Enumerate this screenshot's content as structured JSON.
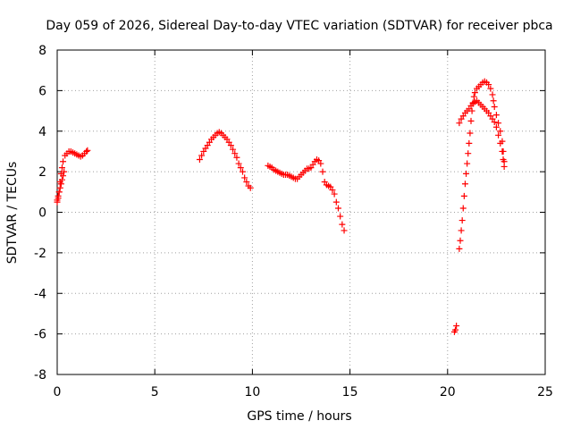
{
  "chart_data": {
    "type": "scatter",
    "title": "Day 059 of 2026, Sidereal Day-to-day VTEC variation (SDTVAR) for receiver pbca",
    "xlabel": "GPS time / hours",
    "ylabel": "SDTVAR / TECUs",
    "xlim": [
      0,
      25
    ],
    "ylim": [
      -8,
      8
    ],
    "xticks": [
      0,
      5,
      10,
      15,
      20,
      25
    ],
    "yticks": [
      -8,
      -6,
      -4,
      -2,
      0,
      2,
      4,
      6,
      8
    ],
    "xtick_labels": [
      "0",
      "5",
      "10",
      "15",
      "20",
      "25"
    ],
    "ytick_labels": [
      "-8",
      "-6",
      "-4",
      "-2",
      "0",
      "2",
      "4",
      "6",
      "8"
    ],
    "grid": true,
    "marker": "plus",
    "color": "#ff0000",
    "segments": [
      [
        [
          0.0,
          0.5
        ],
        [
          0.05,
          0.7
        ],
        [
          0.1,
          1.0
        ],
        [
          0.15,
          1.5
        ],
        [
          0.2,
          1.9
        ],
        [
          0.25,
          2.2
        ],
        [
          0.3,
          2.5
        ],
        [
          0.4,
          2.8
        ],
        [
          0.5,
          2.9
        ],
        [
          0.6,
          3.0
        ],
        [
          0.7,
          3.0
        ],
        [
          0.8,
          2.95
        ],
        [
          0.9,
          2.9
        ],
        [
          1.0,
          2.85
        ],
        [
          1.1,
          2.8
        ],
        [
          1.2,
          2.75
        ],
        [
          1.3,
          2.8
        ],
        [
          1.4,
          2.9
        ],
        [
          1.5,
          3.0
        ],
        [
          1.55,
          3.05
        ]
      ],
      [
        [
          0.0,
          0.6
        ],
        [
          0.05,
          0.8
        ],
        [
          0.1,
          1.0
        ],
        [
          0.15,
          1.2
        ],
        [
          0.2,
          1.4
        ],
        [
          0.25,
          1.6
        ],
        [
          0.3,
          1.8
        ],
        [
          0.35,
          2.0
        ]
      ],
      [
        [
          7.3,
          2.6
        ],
        [
          7.4,
          2.8
        ],
        [
          7.5,
          3.0
        ],
        [
          7.6,
          3.15
        ],
        [
          7.7,
          3.3
        ],
        [
          7.8,
          3.45
        ],
        [
          7.9,
          3.6
        ],
        [
          8.0,
          3.7
        ],
        [
          8.1,
          3.8
        ],
        [
          8.2,
          3.9
        ],
        [
          8.3,
          3.95
        ],
        [
          8.4,
          3.9
        ],
        [
          8.5,
          3.8
        ],
        [
          8.6,
          3.7
        ],
        [
          8.7,
          3.6
        ],
        [
          8.8,
          3.45
        ],
        [
          8.9,
          3.3
        ],
        [
          9.0,
          3.1
        ],
        [
          9.1,
          2.9
        ],
        [
          9.2,
          2.7
        ],
        [
          9.3,
          2.4
        ],
        [
          9.4,
          2.2
        ],
        [
          9.5,
          2.0
        ],
        [
          9.6,
          1.7
        ],
        [
          9.7,
          1.5
        ],
        [
          9.8,
          1.3
        ],
        [
          9.9,
          1.2
        ]
      ],
      [
        [
          10.8,
          2.3
        ],
        [
          10.9,
          2.25
        ],
        [
          11.0,
          2.2
        ],
        [
          11.1,
          2.1
        ],
        [
          11.2,
          2.05
        ],
        [
          11.3,
          2.0
        ],
        [
          11.4,
          1.95
        ],
        [
          11.5,
          1.9
        ],
        [
          11.6,
          1.85
        ],
        [
          11.7,
          1.85
        ],
        [
          11.8,
          1.85
        ],
        [
          11.9,
          1.8
        ],
        [
          12.0,
          1.75
        ],
        [
          12.1,
          1.7
        ],
        [
          12.2,
          1.65
        ],
        [
          12.3,
          1.65
        ],
        [
          12.4,
          1.75
        ],
        [
          12.5,
          1.85
        ],
        [
          12.6,
          1.95
        ],
        [
          12.7,
          2.05
        ],
        [
          12.8,
          2.15
        ],
        [
          12.9,
          2.15
        ],
        [
          13.0,
          2.2
        ],
        [
          13.1,
          2.35
        ],
        [
          13.2,
          2.5
        ],
        [
          13.3,
          2.6
        ],
        [
          13.4,
          2.55
        ],
        [
          13.5,
          2.4
        ],
        [
          13.6,
          2.0
        ],
        [
          13.7,
          1.5
        ],
        [
          13.8,
          1.35
        ],
        [
          13.9,
          1.3
        ],
        [
          14.0,
          1.25
        ],
        [
          14.1,
          1.1
        ],
        [
          14.2,
          0.9
        ],
        [
          14.3,
          0.5
        ],
        [
          14.4,
          0.2
        ],
        [
          14.5,
          -0.2
        ],
        [
          14.6,
          -0.6
        ],
        [
          14.7,
          -0.9
        ]
      ],
      [
        [
          20.35,
          -5.9
        ],
        [
          20.4,
          -5.8
        ],
        [
          20.45,
          -5.6
        ]
      ],
      [
        [
          20.6,
          -1.8
        ],
        [
          20.65,
          -1.4
        ],
        [
          20.7,
          -0.9
        ],
        [
          20.75,
          -0.4
        ],
        [
          20.8,
          0.2
        ],
        [
          20.85,
          0.8
        ],
        [
          20.9,
          1.4
        ],
        [
          20.95,
          1.9
        ],
        [
          21.0,
          2.4
        ],
        [
          21.05,
          2.9
        ],
        [
          21.1,
          3.4
        ],
        [
          21.15,
          3.9
        ],
        [
          21.2,
          4.5
        ],
        [
          21.25,
          5.0
        ],
        [
          21.3,
          5.4
        ],
        [
          21.35,
          5.7
        ],
        [
          21.4,
          5.9
        ],
        [
          21.5,
          6.1
        ],
        [
          21.6,
          6.2
        ],
        [
          21.7,
          6.3
        ],
        [
          21.8,
          6.4
        ],
        [
          21.9,
          6.45
        ],
        [
          22.0,
          6.4
        ],
        [
          22.1,
          6.3
        ],
        [
          22.2,
          6.1
        ],
        [
          22.3,
          5.8
        ],
        [
          22.35,
          5.5
        ],
        [
          22.4,
          5.2
        ],
        [
          22.5,
          4.8
        ],
        [
          22.6,
          4.4
        ],
        [
          22.7,
          4.0
        ],
        [
          22.8,
          3.5
        ],
        [
          22.85,
          3.0
        ],
        [
          22.9,
          2.5
        ]
      ],
      [
        [
          20.6,
          4.4
        ],
        [
          20.7,
          4.6
        ],
        [
          20.8,
          4.75
        ],
        [
          20.9,
          4.9
        ],
        [
          21.0,
          5.0
        ],
        [
          21.1,
          5.1
        ],
        [
          21.2,
          5.25
        ],
        [
          21.3,
          5.35
        ],
        [
          21.4,
          5.45
        ],
        [
          21.5,
          5.5
        ],
        [
          21.6,
          5.4
        ],
        [
          21.7,
          5.3
        ],
        [
          21.8,
          5.2
        ],
        [
          21.9,
          5.1
        ],
        [
          22.0,
          5.0
        ],
        [
          22.1,
          4.9
        ],
        [
          22.2,
          4.75
        ],
        [
          22.3,
          4.6
        ],
        [
          22.4,
          4.45
        ],
        [
          22.5,
          4.2
        ],
        [
          22.6,
          3.8
        ],
        [
          22.7,
          3.4
        ],
        [
          22.8,
          3.0
        ],
        [
          22.85,
          2.6
        ],
        [
          22.9,
          2.25
        ]
      ]
    ]
  }
}
